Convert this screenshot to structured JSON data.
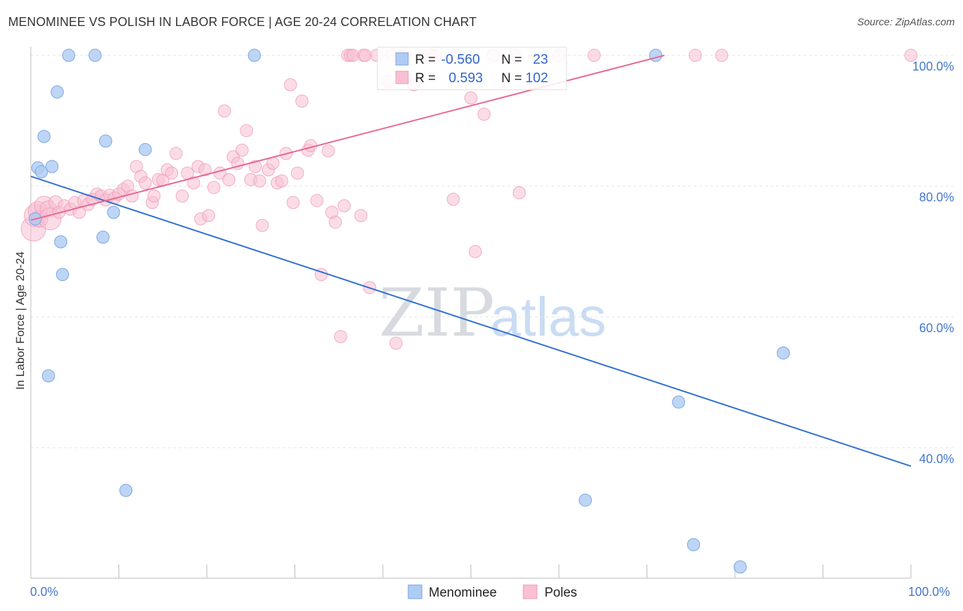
{
  "header": {
    "title": "MENOMINEE VS POLISH IN LABOR FORCE | AGE 20-24 CORRELATION CHART",
    "source": "Source: ZipAtlas.com"
  },
  "colors": {
    "blue_fill": "#aecbf2",
    "blue_stroke": "#7aa6e0",
    "blue_line": "#2f6fd0",
    "pink_fill": "#f8c0d2",
    "pink_stroke": "#ee9ab6",
    "pink_line": "#e8668e",
    "axis_text": "#4477cc",
    "grid": "#e3e3e3"
  },
  "watermark": {
    "part1": "ZIP",
    "part2": "atlas"
  },
  "stats_legend": {
    "rows": [
      {
        "r_label": "R =",
        "r_value": "-0.560",
        "n_label": "N =",
        "n_value": "23"
      },
      {
        "r_label": "R =",
        "r_value": "0.593",
        "n_label": "N =",
        "n_value": "102"
      }
    ]
  },
  "bottom_legend": [
    "Menominee",
    "Poles"
  ],
  "chart_data": {
    "type": "scatter",
    "title": "MENOMINEE VS POLISH IN LABOR FORCE | AGE 20-24 CORRELATION CHART",
    "xlabel": "",
    "ylabel": "In Labor Force | Age 20-24",
    "x_ticks": [
      "0.0%",
      "100.0%"
    ],
    "y_ticks": [
      {
        "value": 100,
        "label": "100.0%"
      },
      {
        "value": 80,
        "label": "80.0%"
      },
      {
        "value": 60,
        "label": "60.0%"
      },
      {
        "value": 40,
        "label": "40.0%"
      }
    ],
    "xlim": [
      0,
      100
    ],
    "ylim": [
      20,
      102
    ],
    "series": [
      {
        "name": "Menominee",
        "r": -0.56,
        "n": 23,
        "trend": {
          "x": [
            0,
            100
          ],
          "y": [
            81.5,
            37.2
          ]
        },
        "points": [
          [
            0.5,
            75.0
          ],
          [
            0.8,
            82.8
          ],
          [
            1.2,
            82.2
          ],
          [
            1.5,
            87.6
          ],
          [
            2.0,
            51.0
          ],
          [
            2.4,
            83.0
          ],
          [
            3.0,
            94.4
          ],
          [
            3.4,
            71.5
          ],
          [
            3.6,
            66.5
          ],
          [
            4.3,
            100.0
          ],
          [
            7.3,
            100.0
          ],
          [
            8.2,
            72.2
          ],
          [
            8.5,
            86.9
          ],
          [
            9.4,
            76.0
          ],
          [
            10.8,
            33.5
          ],
          [
            13.0,
            85.6
          ],
          [
            25.4,
            100.0
          ],
          [
            63.0,
            32.0
          ],
          [
            71.0,
            100.0
          ],
          [
            73.6,
            47.0
          ],
          [
            75.3,
            25.2
          ],
          [
            80.6,
            21.8
          ],
          [
            85.5,
            54.5
          ]
        ]
      },
      {
        "name": "Poles",
        "r": 0.593,
        "n": 102,
        "trend": {
          "x": [
            0,
            72
          ],
          "y": [
            74.8,
            100.0
          ]
        },
        "points": [
          [
            0.3,
            73.5,
            18
          ],
          [
            0.5,
            75.5,
            16
          ],
          [
            0.8,
            76.2,
            14
          ],
          [
            1.0,
            75.0,
            12
          ],
          [
            1.5,
            77.0,
            14
          ],
          [
            2.0,
            76.5,
            12
          ],
          [
            2.2,
            75.0,
            16
          ],
          [
            2.8,
            77.5,
            10
          ],
          [
            3.2,
            76.0,
            9
          ],
          [
            3.8,
            77.0,
            9
          ],
          [
            4.5,
            76.5,
            9
          ],
          [
            5.0,
            77.5,
            9
          ],
          [
            5.5,
            76.0,
            9
          ],
          [
            6.0,
            77.8,
            9
          ],
          [
            6.5,
            77.2,
            9
          ],
          [
            7.0,
            78.0,
            9
          ],
          [
            7.5,
            78.8,
            9
          ],
          [
            8.0,
            78.5,
            9
          ],
          [
            8.5,
            77.9,
            9
          ],
          [
            9.0,
            78.6,
            9
          ],
          [
            9.5,
            78.2,
            9
          ],
          [
            10.0,
            78.8,
            9
          ],
          [
            10.5,
            79.5,
            9
          ],
          [
            11.0,
            80.0,
            9
          ],
          [
            11.5,
            78.5,
            9
          ],
          [
            12.0,
            83.0,
            9
          ],
          [
            12.5,
            81.5,
            9
          ],
          [
            13.0,
            80.5,
            9
          ],
          [
            13.8,
            77.5,
            9
          ],
          [
            14.0,
            78.5,
            9
          ],
          [
            14.5,
            81.0,
            9
          ],
          [
            15.0,
            80.9,
            9
          ],
          [
            15.5,
            82.5,
            9
          ],
          [
            16.0,
            82.0,
            9
          ],
          [
            16.5,
            85.0,
            9
          ],
          [
            17.2,
            78.5,
            9
          ],
          [
            17.8,
            82.0,
            9
          ],
          [
            18.5,
            80.5,
            9
          ],
          [
            19.0,
            83.0,
            9
          ],
          [
            19.3,
            75.0,
            9
          ],
          [
            19.8,
            82.5,
            9
          ],
          [
            20.2,
            75.5,
            9
          ],
          [
            20.8,
            79.8,
            9
          ],
          [
            21.5,
            82.0,
            9
          ],
          [
            22.0,
            91.5,
            9
          ],
          [
            22.5,
            81.0,
            9
          ],
          [
            23.0,
            84.5,
            9
          ],
          [
            23.5,
            83.5,
            9
          ],
          [
            24.0,
            85.5,
            9
          ],
          [
            24.5,
            88.5,
            9
          ],
          [
            25.0,
            81.0,
            9
          ],
          [
            25.5,
            83.0,
            9
          ],
          [
            26.0,
            80.8,
            9
          ],
          [
            26.3,
            74.0,
            9
          ],
          [
            27.0,
            82.5,
            9
          ],
          [
            27.5,
            83.5,
            9
          ],
          [
            28.0,
            80.5,
            9
          ],
          [
            28.5,
            80.8,
            9
          ],
          [
            29.0,
            85.0,
            9
          ],
          [
            29.5,
            95.5,
            9
          ],
          [
            29.8,
            77.5,
            9
          ],
          [
            30.3,
            82.0,
            9
          ],
          [
            30.8,
            93.0,
            9
          ],
          [
            31.5,
            85.5,
            9
          ],
          [
            31.8,
            86.2,
            9
          ],
          [
            32.5,
            77.8,
            9
          ],
          [
            33.0,
            66.5,
            9
          ],
          [
            33.8,
            85.4,
            9
          ],
          [
            34.2,
            76.0,
            9
          ],
          [
            34.6,
            74.5,
            9
          ],
          [
            35.2,
            57.0,
            9
          ],
          [
            35.6,
            77.0,
            9
          ],
          [
            36.0,
            100.0,
            9
          ],
          [
            36.3,
            100.0,
            9
          ],
          [
            36.6,
            100.0,
            9
          ],
          [
            37.5,
            75.5,
            9
          ],
          [
            37.8,
            100.0,
            9
          ],
          [
            38.0,
            100.0,
            9
          ],
          [
            38.5,
            64.5,
            9
          ],
          [
            39.3,
            100.0,
            9
          ],
          [
            40.5,
            96.0,
            9
          ],
          [
            41.0,
            100.0,
            9
          ],
          [
            41.5,
            56.0,
            9
          ],
          [
            42.0,
            100.0,
            9
          ],
          [
            42.5,
            100.0,
            9
          ],
          [
            43.5,
            95.5,
            9
          ],
          [
            44.5,
            100.0,
            9
          ],
          [
            45.5,
            100.0,
            9
          ],
          [
            46.0,
            100.0,
            9
          ],
          [
            48.0,
            78.0,
            9
          ],
          [
            48.5,
            100.0,
            9
          ],
          [
            50.0,
            93.5,
            9
          ],
          [
            50.5,
            70.0,
            9
          ],
          [
            51.5,
            91.0,
            9
          ],
          [
            52.5,
            100.0,
            9
          ],
          [
            55.0,
            100.0,
            9
          ],
          [
            55.5,
            79.0,
            9
          ],
          [
            60.0,
            100.0,
            9
          ],
          [
            64.0,
            100.0,
            9
          ],
          [
            75.5,
            100.0,
            9
          ],
          [
            78.5,
            100.0,
            9
          ],
          [
            100.0,
            100.0,
            9
          ]
        ]
      }
    ]
  }
}
